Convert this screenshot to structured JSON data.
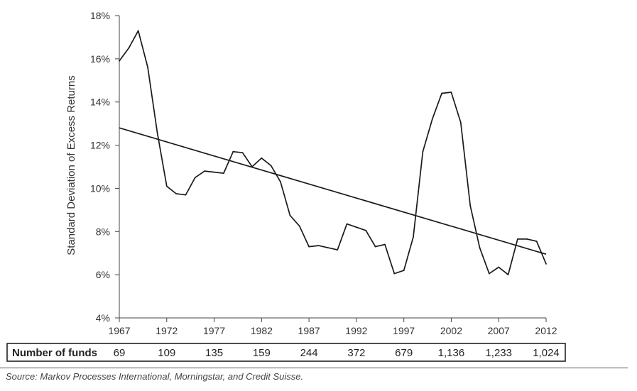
{
  "chart_data": {
    "type": "line",
    "title": "",
    "ylabel": "Standard Deviation of Excess Returns",
    "xlabel": "",
    "xlim": [
      1967,
      2012
    ],
    "ylim": [
      4,
      18
    ],
    "yticks": [
      4,
      6,
      8,
      10,
      12,
      14,
      16,
      18
    ],
    "ytick_labels": [
      "4%",
      "6%",
      "8%",
      "10%",
      "12%",
      "14%",
      "16%",
      "18%"
    ],
    "xticks": [
      1967,
      1972,
      1977,
      1982,
      1987,
      1992,
      1997,
      2002,
      2007,
      2012
    ],
    "xtick_labels": [
      "1967",
      "1972",
      "1977",
      "1982",
      "1987",
      "1992",
      "1997",
      "2002",
      "2007",
      "2012"
    ],
    "grid": false,
    "series": [
      {
        "values": [
          [
            1967,
            15.9
          ],
          [
            1968,
            16.5
          ],
          [
            1969,
            17.3
          ],
          [
            1970,
            15.6
          ],
          [
            1971,
            12.6
          ],
          [
            1972,
            10.1
          ],
          [
            1973,
            9.75
          ],
          [
            1974,
            9.7
          ],
          [
            1975,
            10.5
          ],
          [
            1976,
            10.8
          ],
          [
            1977,
            10.75
          ],
          [
            1978,
            10.7
          ],
          [
            1979,
            11.7
          ],
          [
            1980,
            11.65
          ],
          [
            1981,
            11.0
          ],
          [
            1982,
            11.4
          ],
          [
            1983,
            11.05
          ],
          [
            1984,
            10.3
          ],
          [
            1985,
            8.75
          ],
          [
            1986,
            8.25
          ],
          [
            1987,
            7.3
          ],
          [
            1988,
            7.35
          ],
          [
            1989,
            7.25
          ],
          [
            1990,
            7.15
          ],
          [
            1991,
            8.35
          ],
          [
            1992,
            8.2
          ],
          [
            1993,
            8.05
          ],
          [
            1994,
            7.3
          ],
          [
            1995,
            7.4
          ],
          [
            1996,
            6.05
          ],
          [
            1997,
            6.2
          ],
          [
            1998,
            7.75
          ],
          [
            1999,
            11.7
          ],
          [
            2000,
            13.2
          ],
          [
            2001,
            14.4
          ],
          [
            2002,
            14.45
          ],
          [
            2003,
            13.05
          ],
          [
            2004,
            9.2
          ],
          [
            2005,
            7.25
          ],
          [
            2006,
            6.05
          ],
          [
            2007,
            6.35
          ],
          [
            2008,
            6.0
          ],
          [
            2009,
            7.65
          ],
          [
            2010,
            7.65
          ],
          [
            2011,
            7.55
          ],
          [
            2012,
            6.5
          ]
        ]
      }
    ],
    "trendline": {
      "x": [
        1967,
        2012
      ],
      "y": [
        12.8,
        6.95
      ]
    },
    "table": {
      "label": "Number of funds",
      "years": [
        1967,
        1972,
        1977,
        1982,
        1987,
        1992,
        1997,
        2002,
        2007,
        2012
      ],
      "values": [
        "69",
        "109",
        "135",
        "159",
        "244",
        "372",
        "679",
        "1,136",
        "1,233",
        "1,024"
      ]
    }
  },
  "source": "Source: Markov Processes International, Morningstar, and Credit Suisse."
}
